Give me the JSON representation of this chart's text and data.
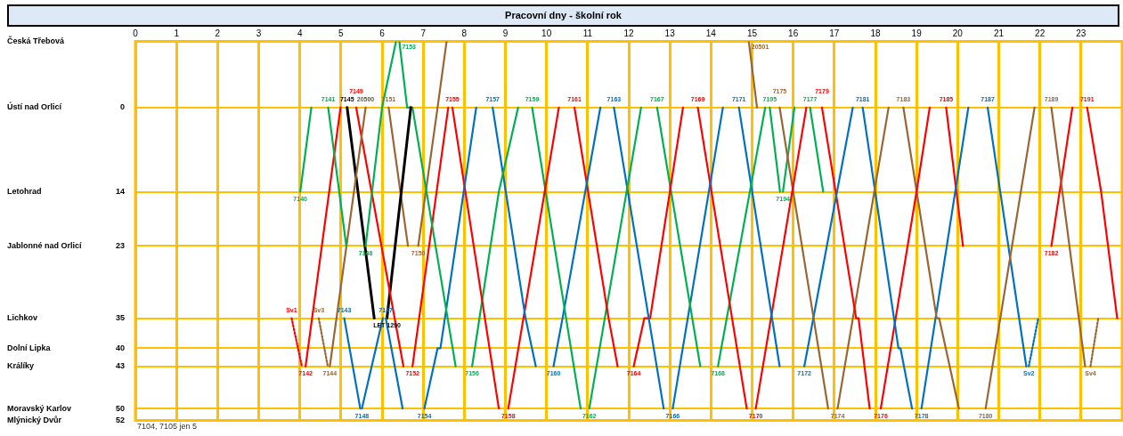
{
  "chart_data": {
    "type": "line",
    "title": "Pracovní dny - školní rok",
    "xlim": [
      0,
      24
    ],
    "xticks": [
      0,
      1,
      2,
      3,
      4,
      5,
      6,
      7,
      8,
      9,
      10,
      11,
      12,
      13,
      14,
      15,
      16,
      17,
      18,
      19,
      20,
      21,
      22,
      23
    ],
    "ylim": [
      52,
      -11
    ],
    "yticks": [
      {
        "value": -11,
        "label": null
      },
      0,
      14,
      23,
      35,
      40,
      43,
      50,
      52
    ],
    "grid": true,
    "legend": false,
    "marker": "none",
    "line_style": "solid",
    "annotations": [
      "Česká Třebová",
      "Ústí nad Orlicí",
      "Letohrad",
      "Jablonné nad Orlicí",
      "Lichkov",
      "Dolní Lipka",
      "Králíky",
      "Moravský Karlov",
      "Mlýnický Dvůr",
      {
        "text": "20500",
        "x": 5.6,
        "y": 0
      },
      "7104, 7105 jen 5"
    ],
    "series": [
      {
        "name": "7140",
        "color": "#00b050",
        "x": [
          4.01,
          4.28
        ],
        "values": [
          14,
          0
        ]
      },
      {
        "name": "7141",
        "color": "#00b050",
        "x": [
          4.69,
          5.13
        ],
        "values": [
          0,
          23
        ]
      },
      {
        "name": "7146",
        "color": "#00b050",
        "x": [
          5.6,
          6.0,
          6.34
        ],
        "values": [
          23,
          0,
          -11
        ]
      },
      {
        "name": "Sv1",
        "color": "#ff0000",
        "line_style": "dotted",
        "x": [
          3.8,
          4.05
        ],
        "values": [
          35,
          43
        ]
      },
      {
        "name": "7142",
        "color": "#ff0000",
        "x": [
          4.14,
          4.99
        ],
        "values": [
          43,
          0
        ]
      },
      {
        "name": "Sv3",
        "color": "#996633",
        "line_style": "dotted",
        "x": [
          4.46,
          4.68
        ],
        "values": [
          35,
          43
        ]
      },
      {
        "name": "7144",
        "color": "#996633",
        "x": [
          4.73,
          5.6
        ],
        "values": [
          43,
          0
        ]
      },
      {
        "name": "7143",
        "color": "#0070c0",
        "x": [
          5.08,
          5.47
        ],
        "values": [
          35,
          50
        ]
      },
      {
        "name": "7148",
        "color": "#0070c0",
        "x": [
          5.51,
          6.02
        ],
        "values": [
          50,
          35
        ]
      },
      {
        "name": "7145",
        "color": "#000000",
        "x": [
          5.15,
          5.81
        ],
        "values": [
          0,
          35
        ]
      },
      {
        "name": "7149",
        "color": "#ff0000",
        "x": [
          5.37,
          6.52
        ],
        "values": [
          0,
          43
        ]
      },
      {
        "name": "7147",
        "color": "#0070c0",
        "x": [
          6.09,
          6.5
        ],
        "values": [
          35,
          50
        ]
      },
      {
        "name": "LET 1290",
        "color": "#000000",
        "x": [
          6.12,
          6.7
        ],
        "values": [
          35,
          0
        ]
      },
      {
        "name": "7151",
        "color": "#996633",
        "x": [
          6.16,
          6.63
        ],
        "values": [
          0,
          23
        ]
      },
      {
        "name": "7153",
        "color": "#00b050",
        "x": [
          6.42,
          6.61,
          6.74,
          7.79
        ],
        "values": [
          -11,
          0,
          0,
          43
        ]
      },
      {
        "name": "7152",
        "color": "#ff0000",
        "x": [
          6.74,
          7.61
        ],
        "values": [
          43,
          0
        ]
      },
      {
        "name": "7150",
        "color": "#996633",
        "x": [
          6.88,
          7.35,
          7.57
        ],
        "values": [
          23,
          0,
          -11
        ]
      },
      {
        "name": "7154",
        "color": "#0070c0",
        "x": [
          7.03,
          7.35,
          7.42,
          8.29
        ],
        "values": [
          50,
          40,
          40,
          0
        ]
      },
      {
        "name": "7155",
        "color": "#ff0000",
        "x": [
          7.71,
          8.84
        ],
        "values": [
          0,
          50
        ]
      },
      {
        "name": "7156",
        "color": "#00b050",
        "x": [
          8.19,
          8.84,
          9.31
        ],
        "values": [
          43,
          14,
          0
        ]
      },
      {
        "name": "7157",
        "color": "#0070c0",
        "x": [
          8.69,
          9.49,
          9.74
        ],
        "values": [
          0,
          35,
          43
        ]
      },
      {
        "name": "7158",
        "color": "#ff0000",
        "x": [
          9.07,
          10.3
        ],
        "values": [
          50,
          0
        ]
      },
      {
        "name": "7159",
        "color": "#00b050",
        "x": [
          9.65,
          10.83
        ],
        "values": [
          0,
          50
        ]
      },
      {
        "name": "7160",
        "color": "#0070c0",
        "x": [
          10.17,
          10.39,
          11.31
        ],
        "values": [
          43,
          35,
          0
        ]
      },
      {
        "name": "7161",
        "color": "#ff0000",
        "x": [
          10.68,
          11.51,
          11.73
        ],
        "values": [
          0,
          35,
          43
        ]
      },
      {
        "name": "7162",
        "color": "#00b050",
        "x": [
          11.04,
          12.3
        ],
        "values": [
          50,
          0
        ]
      },
      {
        "name": "7163",
        "color": "#0070c0",
        "x": [
          11.64,
          12.85
        ],
        "values": [
          0,
          50
        ]
      },
      {
        "name": "7164",
        "color": "#ff0000",
        "x": [
          12.12,
          12.38,
          12.52,
          13.32
        ],
        "values": [
          43,
          35,
          35,
          0
        ]
      },
      {
        "name": "7167",
        "color": "#00b050",
        "x": [
          12.69,
          13.74
        ],
        "values": [
          0,
          43
        ]
      },
      {
        "name": "7166",
        "color": "#0070c0",
        "x": [
          13.07,
          14.29
        ],
        "values": [
          50,
          0
        ]
      },
      {
        "name": "7169",
        "color": "#ff0000",
        "x": [
          13.68,
          14.87
        ],
        "values": [
          0,
          50
        ]
      },
      {
        "name": "7168",
        "color": "#00b050",
        "x": [
          14.17,
          15.32
        ],
        "values": [
          43,
          0
        ]
      },
      {
        "name": "7171",
        "color": "#0070c0",
        "x": [
          14.68,
          15.67
        ],
        "values": [
          0,
          43
        ]
      },
      {
        "name": "20501",
        "color": "#996633",
        "x": [
          14.92,
          15.12
        ],
        "values": [
          -11,
          0
        ]
      },
      {
        "name": "7170",
        "color": "#ff0000",
        "x": [
          15.09,
          16.32
        ],
        "values": [
          50,
          0
        ]
      },
      {
        "name": "7195",
        "color": "#00b050",
        "x": [
          15.43,
          15.68
        ],
        "values": [
          0,
          14
        ]
      },
      {
        "name": "7175",
        "color": "#996633",
        "x": [
          15.67,
          16.85
        ],
        "values": [
          0,
          50
        ]
      },
      {
        "name": "7194",
        "color": "#00b050",
        "x": [
          15.75,
          16.03
        ],
        "values": [
          14,
          0
        ]
      },
      {
        "name": "7172",
        "color": "#0070c0",
        "x": [
          16.27,
          17.45
        ],
        "values": [
          43,
          0
        ]
      },
      {
        "name": "7177",
        "color": "#00b050",
        "x": [
          16.41,
          16.73
        ],
        "values": [
          0,
          14
        ]
      },
      {
        "name": "7179",
        "color": "#ff0000",
        "x": [
          16.7,
          17.53,
          17.59,
          17.86
        ],
        "values": [
          0,
          35,
          35,
          50
        ]
      },
      {
        "name": "7174",
        "color": "#996633",
        "x": [
          17.08,
          18.32
        ],
        "values": [
          50,
          0
        ]
      },
      {
        "name": "7181",
        "color": "#0070c0",
        "x": [
          17.69,
          18.56,
          18.61,
          18.89
        ],
        "values": [
          0,
          40,
          40,
          50
        ]
      },
      {
        "name": "7176",
        "color": "#ff0000",
        "x": [
          18.13,
          19.0,
          19.32
        ],
        "values": [
          50,
          14,
          0
        ]
      },
      {
        "name": "7183",
        "color": "#996633",
        "x": [
          18.68,
          19.49,
          19.55,
          20.03
        ],
        "values": [
          0,
          35,
          35,
          50
        ]
      },
      {
        "name": "7178",
        "color": "#0070c0",
        "x": [
          19.12,
          20.26
        ],
        "values": [
          50,
          0
        ]
      },
      {
        "name": "7185",
        "color": "#ff0000",
        "x": [
          19.72,
          20.13
        ],
        "values": [
          0,
          23
        ]
      },
      {
        "name": "7180",
        "color": "#996633",
        "x": [
          20.68,
          21.87
        ],
        "values": [
          50,
          0
        ]
      },
      {
        "name": "7187",
        "color": "#0070c0",
        "x": [
          20.73,
          21.67
        ],
        "values": [
          0,
          43
        ]
      },
      {
        "name": "Sv2",
        "color": "#0070c0",
        "line_style": "dotted",
        "x": [
          21.73,
          21.96
        ],
        "values": [
          43,
          35
        ]
      },
      {
        "name": "7189",
        "color": "#996633",
        "x": [
          22.28,
          23.1
        ],
        "values": [
          0,
          43
        ]
      },
      {
        "name": "7182",
        "color": "#ff0000",
        "x": [
          22.28,
          22.79
        ],
        "values": [
          23,
          0
        ]
      },
      {
        "name": "7191",
        "color": "#ff0000",
        "x": [
          23.15,
          23.49,
          23.88
        ],
        "values": [
          0,
          14,
          35
        ]
      },
      {
        "name": "Sv4",
        "color": "#996633",
        "line_style": "dotted",
        "x": [
          23.23,
          23.42
        ],
        "values": [
          43,
          35
        ]
      }
    ]
  }
}
